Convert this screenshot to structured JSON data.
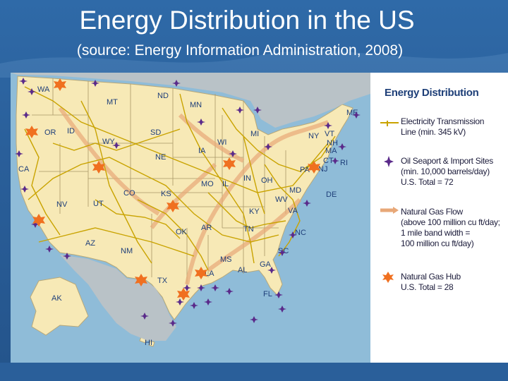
{
  "title": "Energy Distribution in the US",
  "subtitle": "(source: Energy Information Administration, 2008)",
  "legend": {
    "title": "Energy Distribution",
    "items": [
      {
        "symbol": "electricity-line",
        "lines": [
          "Electricity Transmission",
          "Line (min. 345 kV)"
        ],
        "color": "#c9a300"
      },
      {
        "symbol": "oil-seaport-icon",
        "lines": [
          "Oil Seaport & Import Sites",
          "(min. 10,000 barrels/day)",
          "U.S. Total = 72"
        ],
        "color": "#5a2a8a"
      },
      {
        "symbol": "gas-flow-arrow",
        "lines": [
          "Natural Gas Flow",
          "(above 100 million cu ft/day;",
          "1 mile band width =",
          "100 million cu ft/day)"
        ],
        "color": "#e8a878"
      },
      {
        "symbol": "gas-hub-icon",
        "lines": [
          "Natural Gas Hub",
          "U.S. Total = 28"
        ],
        "color": "#f07020"
      }
    ]
  },
  "states": [
    "WA",
    "MT",
    "ND",
    "MN",
    "ME",
    "OR",
    "ID",
    "SD",
    "WI",
    "MI",
    "NY",
    "VT",
    "NH",
    "MA",
    "CT",
    "RI",
    "WY",
    "IA",
    "NE",
    "PA",
    "NJ",
    "CA",
    "NV",
    "UT",
    "CO",
    "KS",
    "MO",
    "IL",
    "IN",
    "OH",
    "WV",
    "MD",
    "DE",
    "VA",
    "KY",
    "TN",
    "NC",
    "OK",
    "AR",
    "AZ",
    "NM",
    "TX",
    "MS",
    "AL",
    "GA",
    "SC",
    "LA",
    "FL",
    "AK",
    "HI"
  ],
  "colors": {
    "water": "#8fbcd8",
    "land": "#f7e9b6",
    "lines": "#c9a300",
    "seaport": "#5a2a8a",
    "hub": "#f07020",
    "background": "#2a5f9a"
  }
}
